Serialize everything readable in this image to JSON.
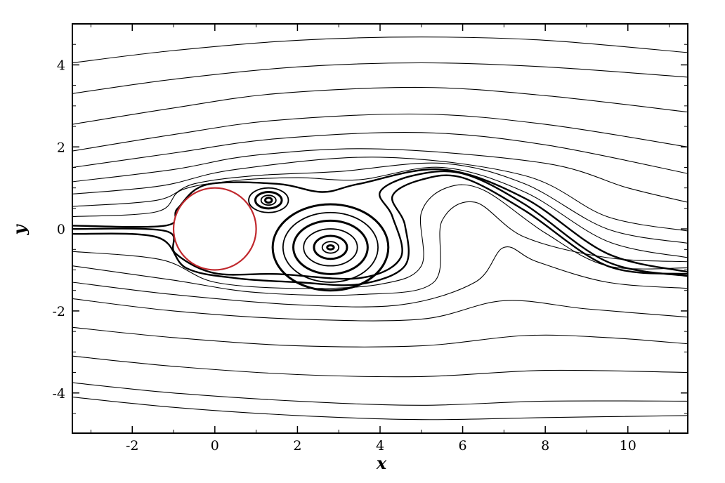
{
  "chart_data": {
    "type": "line",
    "title": "",
    "xlabel": "x",
    "ylabel": "y",
    "xlim": [
      -3.45,
      11.45
    ],
    "ylim": [
      -4.98,
      5.0
    ],
    "x_ticks": [
      -2,
      0,
      2,
      4,
      6,
      8,
      10
    ],
    "x_tick_labels": [
      "-2",
      "0",
      "2",
      "4",
      "6",
      "8",
      "10"
    ],
    "y_ticks": [
      -4,
      -2,
      0,
      2,
      4
    ],
    "y_tick_labels": [
      "-4",
      "-2",
      "0",
      "2",
      "4"
    ],
    "grid": false,
    "legend": "none",
    "colors": {
      "streamline": "#000000",
      "cylinder": "#c0282d",
      "frame": "#000000"
    },
    "cylinder": {
      "center": [
        0,
        0
      ],
      "radius": 1
    },
    "streamlines": [
      {
        "points": [
          [
            -3.45,
            4.05
          ],
          [
            -1,
            4.35
          ],
          [
            2,
            4.6
          ],
          [
            5,
            4.68
          ],
          [
            8,
            4.6
          ],
          [
            11.45,
            4.3
          ]
        ]
      },
      {
        "points": [
          [
            -3.45,
            3.3
          ],
          [
            -1,
            3.65
          ],
          [
            2,
            3.95
          ],
          [
            5,
            4.05
          ],
          [
            8,
            3.95
          ],
          [
            11.45,
            3.7
          ]
        ]
      },
      {
        "points": [
          [
            -3.45,
            2.55
          ],
          [
            -1,
            2.95
          ],
          [
            1.5,
            3.3
          ],
          [
            5,
            3.45
          ],
          [
            8,
            3.25
          ],
          [
            11.45,
            2.85
          ]
        ]
      },
      {
        "points": [
          [
            -3.45,
            1.9
          ],
          [
            -1,
            2.3
          ],
          [
            1.5,
            2.65
          ],
          [
            5,
            2.8
          ],
          [
            8,
            2.55
          ],
          [
            11.45,
            2.0
          ]
        ]
      },
      {
        "points": [
          [
            -3.45,
            1.5
          ],
          [
            -1,
            1.85
          ],
          [
            1.5,
            2.2
          ],
          [
            5,
            2.35
          ],
          [
            8,
            2.05
          ],
          [
            11.45,
            1.35
          ]
        ]
      },
      {
        "points": [
          [
            -3.45,
            1.15
          ],
          [
            -1,
            1.45
          ],
          [
            1,
            1.8
          ],
          [
            4,
            1.95
          ],
          [
            8,
            1.6
          ],
          [
            10,
            1.0
          ],
          [
            11.45,
            0.65
          ]
        ]
      },
      {
        "points": [
          [
            -3.45,
            0.85
          ],
          [
            -1.3,
            1.05
          ],
          [
            0.5,
            1.45
          ],
          [
            4,
            1.75
          ],
          [
            7.5,
            1.3
          ],
          [
            9.5,
            0.3
          ],
          [
            11.45,
            -0.05
          ]
        ]
      },
      {
        "points": [
          [
            -3.45,
            0.55
          ],
          [
            -1.4,
            0.7
          ],
          [
            -0.5,
            1.1
          ],
          [
            1,
            1.3
          ],
          [
            3,
            1.4
          ],
          [
            5.5,
            1.6
          ],
          [
            7.5,
            1.1
          ],
          [
            9.5,
            0.0
          ],
          [
            11.45,
            -0.35
          ]
        ]
      },
      {
        "points": [
          [
            -3.45,
            0.3
          ],
          [
            -1.4,
            0.42
          ],
          [
            -0.8,
            0.95
          ],
          [
            0.5,
            1.18
          ],
          [
            2,
            1.25
          ],
          [
            3.5,
            1.2
          ],
          [
            5.5,
            1.5
          ],
          [
            7.5,
            0.9
          ],
          [
            9.5,
            -0.3
          ],
          [
            11.45,
            -0.7
          ]
        ]
      },
      {
        "points": [
          [
            -3.45,
            0.08
          ],
          [
            -1.2,
            0.08
          ],
          [
            -0.9,
            0.5
          ],
          [
            -0.2,
            1.08
          ],
          [
            1.5,
            1.1
          ],
          [
            2.6,
            0.9
          ],
          [
            3.5,
            1.1
          ],
          [
            5.5,
            1.45
          ],
          [
            7.5,
            0.75
          ],
          [
            9.5,
            -0.6
          ],
          [
            11.45,
            -1.05
          ]
        ]
      },
      {
        "points": [
          [
            -3.45,
            0.0
          ],
          [
            -1.2,
            -0.05
          ],
          [
            -0.95,
            -0.6
          ],
          [
            0,
            -1.08
          ],
          [
            1.5,
            -1.1
          ],
          [
            3.5,
            -1.2
          ],
          [
            4.5,
            -0.7
          ],
          [
            4.3,
            0.3
          ],
          [
            4.0,
            0.9
          ],
          [
            4.8,
            1.3
          ],
          [
            6,
            1.35
          ],
          [
            7.5,
            0.6
          ],
          [
            9.5,
            -0.8
          ],
          [
            11.45,
            -1.15
          ]
        ]
      },
      {
        "points": [
          [
            -3.45,
            -0.12
          ],
          [
            -1.4,
            -0.2
          ],
          [
            -0.7,
            -0.95
          ],
          [
            0.5,
            -1.2
          ],
          [
            2,
            -1.3
          ],
          [
            3.5,
            -1.35
          ],
          [
            4.6,
            -0.9
          ],
          [
            4.6,
            0.1
          ],
          [
            4.3,
            0.8
          ],
          [
            5,
            1.2
          ],
          [
            6,
            1.25
          ],
          [
            7.5,
            0.45
          ],
          [
            9.5,
            -0.9
          ],
          [
            11.45,
            -1.1
          ]
        ]
      },
      {
        "points": [
          [
            -3.45,
            -0.55
          ],
          [
            -1.3,
            -0.75
          ],
          [
            0,
            -1.3
          ],
          [
            2,
            -1.45
          ],
          [
            4,
            -1.35
          ],
          [
            5,
            -0.9
          ],
          [
            5,
            0.4
          ],
          [
            5.6,
            1.0
          ],
          [
            6.5,
            0.95
          ],
          [
            8,
            -0.1
          ],
          [
            9.5,
            -0.9
          ],
          [
            11.45,
            -0.95
          ]
        ]
      },
      {
        "points": [
          [
            -3.45,
            -0.9
          ],
          [
            -1,
            -1.25
          ],
          [
            1,
            -1.55
          ],
          [
            3.5,
            -1.6
          ],
          [
            5.3,
            -1.3
          ],
          [
            5.5,
            0.2
          ],
          [
            6.3,
            0.65
          ],
          [
            7.5,
            -0.2
          ],
          [
            9.5,
            -0.7
          ],
          [
            11.45,
            -0.8
          ]
        ]
      },
      {
        "points": [
          [
            -3.45,
            -1.3
          ],
          [
            -1,
            -1.6
          ],
          [
            2,
            -1.85
          ],
          [
            4.5,
            -1.85
          ],
          [
            6.3,
            -1.3
          ],
          [
            7,
            -0.45
          ],
          [
            7.8,
            -0.8
          ],
          [
            9.5,
            -1.3
          ],
          [
            11.45,
            -1.45
          ]
        ]
      },
      {
        "points": [
          [
            -3.45,
            -1.7
          ],
          [
            -1,
            -2.0
          ],
          [
            2,
            -2.2
          ],
          [
            5,
            -2.2
          ],
          [
            7,
            -1.75
          ],
          [
            9,
            -1.95
          ],
          [
            11.45,
            -2.15
          ]
        ]
      },
      {
        "points": [
          [
            -3.45,
            -2.4
          ],
          [
            -1,
            -2.65
          ],
          [
            2,
            -2.85
          ],
          [
            5,
            -2.85
          ],
          [
            7.5,
            -2.6
          ],
          [
            9.5,
            -2.65
          ],
          [
            11.45,
            -2.8
          ]
        ]
      },
      {
        "points": [
          [
            -3.45,
            -3.1
          ],
          [
            -1,
            -3.35
          ],
          [
            2,
            -3.55
          ],
          [
            5,
            -3.6
          ],
          [
            8,
            -3.45
          ],
          [
            11.45,
            -3.5
          ]
        ]
      },
      {
        "points": [
          [
            -3.45,
            -3.75
          ],
          [
            -1,
            -4.0
          ],
          [
            2,
            -4.2
          ],
          [
            5,
            -4.3
          ],
          [
            8,
            -4.2
          ],
          [
            11.45,
            -4.2
          ]
        ]
      },
      {
        "points": [
          [
            -3.45,
            -4.1
          ],
          [
            -1,
            -4.35
          ],
          [
            2,
            -4.55
          ],
          [
            5,
            -4.65
          ],
          [
            8,
            -4.6
          ],
          [
            11.45,
            -4.55
          ]
        ]
      }
    ],
    "vortices": [
      {
        "center": [
          2.8,
          -0.45
        ],
        "radii": [
          [
            0.08,
            0.05
          ],
          [
            0.2,
            0.14
          ],
          [
            0.4,
            0.28
          ],
          [
            0.65,
            0.45
          ],
          [
            0.9,
            0.65
          ],
          [
            1.15,
            0.85
          ],
          [
            1.4,
            1.05
          ]
        ]
      },
      {
        "center": [
          1.3,
          0.7
        ],
        "radii": [
          [
            0.08,
            0.06
          ],
          [
            0.18,
            0.12
          ],
          [
            0.32,
            0.2
          ],
          [
            0.48,
            0.3
          ]
        ]
      }
    ]
  }
}
